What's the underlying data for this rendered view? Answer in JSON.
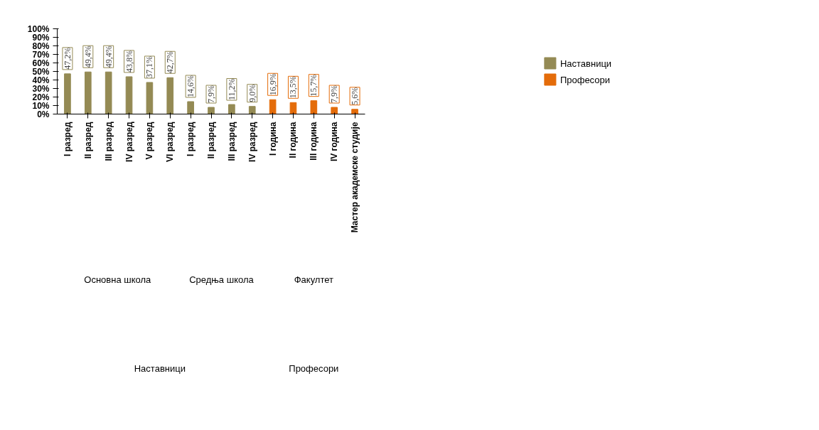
{
  "chart_data": {
    "type": "bar",
    "categories": [
      "I разред",
      "II разред",
      "III разред",
      "IV разред",
      "V разред",
      "VI разред",
      "I разред",
      "II разред",
      "III разред",
      "IV разред",
      "I година",
      "II година",
      "III година",
      "IV година",
      "Мастер академске студије"
    ],
    "series": [
      {
        "name": "Наставници",
        "color": "#948a54",
        "values": [
          47.2,
          49.4,
          49.4,
          43.8,
          37.1,
          42.7,
          14.6,
          7.9,
          11.2,
          9.0,
          null,
          null,
          null,
          null,
          null
        ],
        "value_labels": [
          "47,2%",
          "49,4%",
          "49,4%",
          "43,8%",
          "37,1%",
          "42,7%",
          "14,6%",
          "7,9%",
          "11,2%",
          "9,0%",
          null,
          null,
          null,
          null,
          null
        ]
      },
      {
        "name": "Професори",
        "color": "#e46c0a",
        "values": [
          null,
          null,
          null,
          null,
          null,
          null,
          null,
          null,
          null,
          null,
          16.9,
          13.5,
          15.7,
          7.9,
          5.6
        ],
        "value_labels": [
          null,
          null,
          null,
          null,
          null,
          null,
          null,
          null,
          null,
          null,
          "16,9%",
          "13,5%",
          "15,7%",
          "7,9%",
          "5,6%"
        ]
      }
    ],
    "ylim": [
      0,
      100
    ],
    "yticks": [
      {
        "value": 0,
        "label": "0%"
      },
      {
        "value": 10,
        "label": "10%"
      },
      {
        "value": 20,
        "label": "20%"
      },
      {
        "value": 30,
        "label": "30%"
      },
      {
        "value": 40,
        "label": "40%"
      },
      {
        "value": 50,
        "label": "50%"
      },
      {
        "value": 60,
        "label": "60%"
      },
      {
        "value": 70,
        "label": "70%"
      },
      {
        "value": 80,
        "label": "80%"
      },
      {
        "value": 90,
        "label": "90%"
      },
      {
        "value": 100,
        "label": "100%"
      }
    ],
    "annotations": [
      "Основна  школа",
      "Средња школа",
      "Факултет",
      "Наставници",
      "Професори"
    ],
    "grid": false,
    "legend": "right"
  }
}
